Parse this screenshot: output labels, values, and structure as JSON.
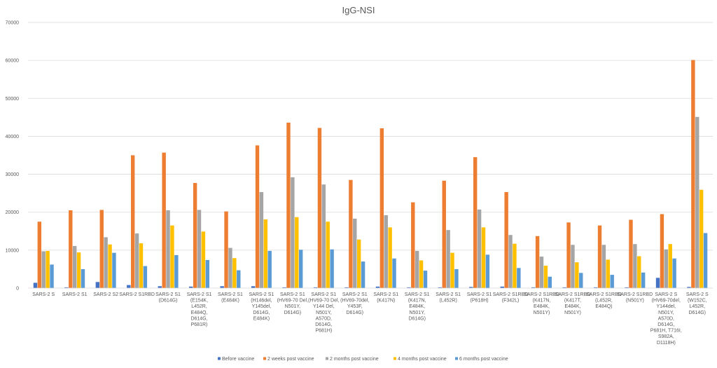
{
  "chart_data": {
    "type": "bar",
    "title": "IgG-NSI",
    "ylim": [
      0,
      70000
    ],
    "yticks": [
      0,
      10000,
      20000,
      30000,
      40000,
      50000,
      60000,
      70000
    ],
    "grid": true,
    "legend_position": "bottom",
    "categories": [
      [
        "SARS-2 S"
      ],
      [
        "SARS-2 S1"
      ],
      [
        "SARS-2 S2"
      ],
      [
        "SARS-2 S1RBD"
      ],
      [
        "SARS-2 S1",
        "(D614G)"
      ],
      [
        "SARS-2 S1",
        "(E154K,",
        "L452R,",
        "E484Q,",
        "D614G,",
        "P681R)"
      ],
      [
        "SARS-2 S1",
        "(E484K)"
      ],
      [
        "SARS-2 S1",
        "(H146del,",
        "Y145del,",
        "D614G,",
        "E484K)"
      ],
      [
        "SARS-2 S1",
        "(HV69-70 Del,",
        "N501Y,",
        "D614G)"
      ],
      [
        "SARS-2 S1",
        "(HV69-70 Del,",
        "Y144 Del,",
        "N501Y,",
        "A570D,",
        "D614G,",
        "P681H)"
      ],
      [
        "SARS-2 S1",
        "(HV69-70del,",
        "Y453F,",
        "D614G)"
      ],
      [
        "SARS-2 S1",
        "(K417N)"
      ],
      [
        "SARS-2 S1",
        "(K417N,",
        "E484K,",
        "N501Y,",
        "D614G)"
      ],
      [
        "SARS-2 S1",
        "(L452R)"
      ],
      [
        "SARS-2 S1",
        "(P618H)"
      ],
      [
        "SARS-2 S1RBD",
        "(F342L)"
      ],
      [
        "SARS-2 S1RBD",
        "(K417N,",
        "E484K,",
        "N501Y)"
      ],
      [
        "SARS-2 S1RBD",
        "(K417T,",
        "E484K,",
        "N501Y)"
      ],
      [
        "SARS-2 S1RBD",
        "(L452R,",
        "E484Q)"
      ],
      [
        "SARS-2 S1RBD",
        "(N501Y)"
      ],
      [
        "SARS-2 S",
        "(HV69-70del,",
        "Y144del,",
        "N501Y,",
        "A570D,",
        "D614G,",
        "P681H, T716I,",
        "S982A,",
        "D1118H)"
      ],
      [
        "SARS-2 S",
        "(W152C,",
        "L452R,",
        "D614G)"
      ]
    ],
    "series": [
      {
        "name": "Before vaccine",
        "color": "#4472C4",
        "values": [
          1400,
          200,
          1600,
          800,
          500,
          400,
          500,
          500,
          200,
          200,
          200,
          400,
          200,
          200,
          300,
          400,
          200,
          200,
          200,
          200,
          2700,
          300
        ]
      },
      {
        "name": "2 weeks post vaccine",
        "color": "#ED7D31",
        "values": [
          17500,
          20500,
          20600,
          35000,
          35700,
          27700,
          20200,
          37600,
          43600,
          42200,
          28500,
          42100,
          22600,
          28300,
          34500,
          25300,
          13700,
          17300,
          16500,
          18000,
          19500,
          60100
        ]
      },
      {
        "name": "2 months post vaccine",
        "color": "#A5A5A5",
        "values": [
          9700,
          11100,
          13400,
          14400,
          20500,
          20600,
          10600,
          25300,
          29200,
          27300,
          18300,
          19200,
          9800,
          15300,
          20700,
          14000,
          8300,
          11400,
          11400,
          11600,
          10200,
          45100
        ]
      },
      {
        "name": "4 months post vaccine",
        "color": "#FFC000",
        "values": [
          9800,
          9400,
          11500,
          11800,
          16500,
          14900,
          7900,
          18100,
          18700,
          17500,
          12800,
          16000,
          7300,
          9300,
          16000,
          11700,
          5900,
          6800,
          7500,
          8400,
          11600,
          25900
        ]
      },
      {
        "name": "6 months post vaccine",
        "color": "#5B9BD5",
        "values": [
          6200,
          5000,
          9300,
          5800,
          8700,
          7400,
          4700,
          9800,
          10100,
          10200,
          7000,
          7800,
          4600,
          5000,
          8800,
          5300,
          3000,
          4000,
          3500,
          4100,
          7800,
          14500
        ]
      }
    ]
  }
}
